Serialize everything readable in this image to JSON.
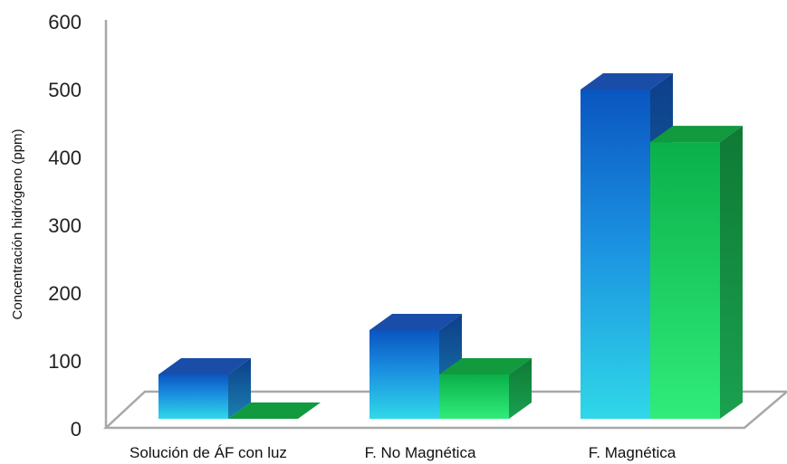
{
  "chart_data": {
    "type": "bar",
    "title": "",
    "xlabel": "",
    "ylabel": "Concentración hidrógeno (ppm)",
    "ylim": [
      0,
      600
    ],
    "yticks": [
      "0",
      "100",
      "200",
      "300",
      "400",
      "500",
      "600"
    ],
    "categories": [
      "Solución de ÁF con luz",
      "F. No Magnética",
      "F. Magnética"
    ],
    "series": [
      {
        "values": [
          70,
          140,
          520
        ]
      },
      {
        "values": [
          0,
          70,
          437
        ]
      }
    ],
    "grid": false,
    "three_d": true,
    "colors": {
      "series1_top": "#0a55c0",
      "series1_mid": "#1a8fe0",
      "series1_bottom": "#30d8e8",
      "series1_cap": "#1a4da8",
      "series1_side": "#0d3f8a",
      "series2_top": "#0ab04a",
      "series2_bottom": "#30ec7a",
      "series2_cap": "#119a3e",
      "series2_side": "#0f7a35",
      "axis": "#a8a8a8"
    }
  }
}
